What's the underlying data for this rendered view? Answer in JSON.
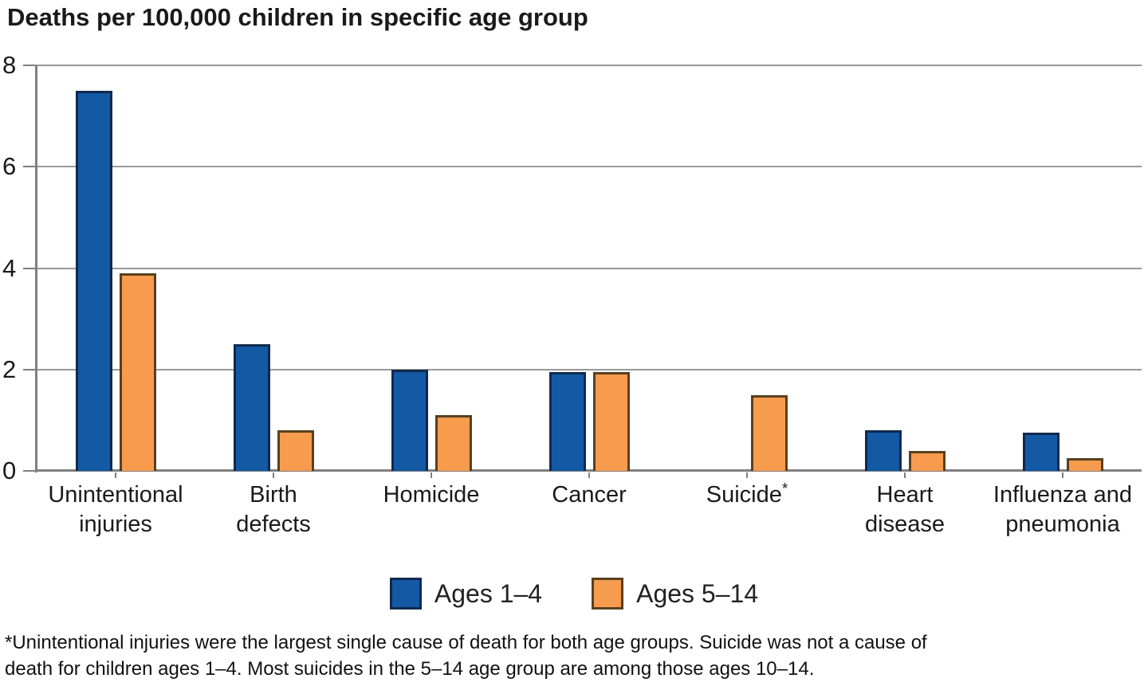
{
  "chart_data": {
    "type": "bar",
    "title": "Deaths per 100,000 children in specific age group",
    "xlabel": "",
    "ylabel": "",
    "ylim": [
      0,
      8
    ],
    "yticks": [
      0,
      2,
      4,
      6,
      8
    ],
    "grid": "horizontal",
    "legend_position": "bottom-center",
    "categories": [
      "Unintentional injuries",
      "Birth defects",
      "Homicide",
      "Cancer",
      "Suicide*",
      "Heart disease",
      "Influenza and pneumonia"
    ],
    "category_label_lines": [
      [
        "Unintentional",
        "injuries"
      ],
      [
        "Birth",
        "defects"
      ],
      [
        "Homicide"
      ],
      [
        "Cancer"
      ],
      [
        "Suicide"
      ],
      [
        "Heart",
        "disease"
      ],
      [
        "Influenza and",
        "pneumonia"
      ]
    ],
    "category_label_sup": [
      "",
      "",
      "",
      "",
      "*",
      "",
      ""
    ],
    "series": [
      {
        "name": "Ages 1–4",
        "color": "#1359A4",
        "border_color": "#10294D",
        "values": [
          7.5,
          2.5,
          2.0,
          1.95,
          null,
          0.8,
          0.75
        ]
      },
      {
        "name": "Ages 5–14",
        "color": "#F79B4E",
        "border_color": "#59401F",
        "values": [
          3.9,
          0.8,
          1.1,
          1.95,
          1.5,
          0.4,
          0.25
        ]
      }
    ],
    "footnote_lines": [
      "*Unintentional injuries were the largest single cause of death for both age groups. Suicide was not a cause of",
      "death for children ages 1–4. Most suicides in the 5–14 age group are among those ages 10–14."
    ],
    "colors": {
      "gridline": "#999999",
      "axis": "#808080",
      "text": "#1a1a1a"
    }
  }
}
